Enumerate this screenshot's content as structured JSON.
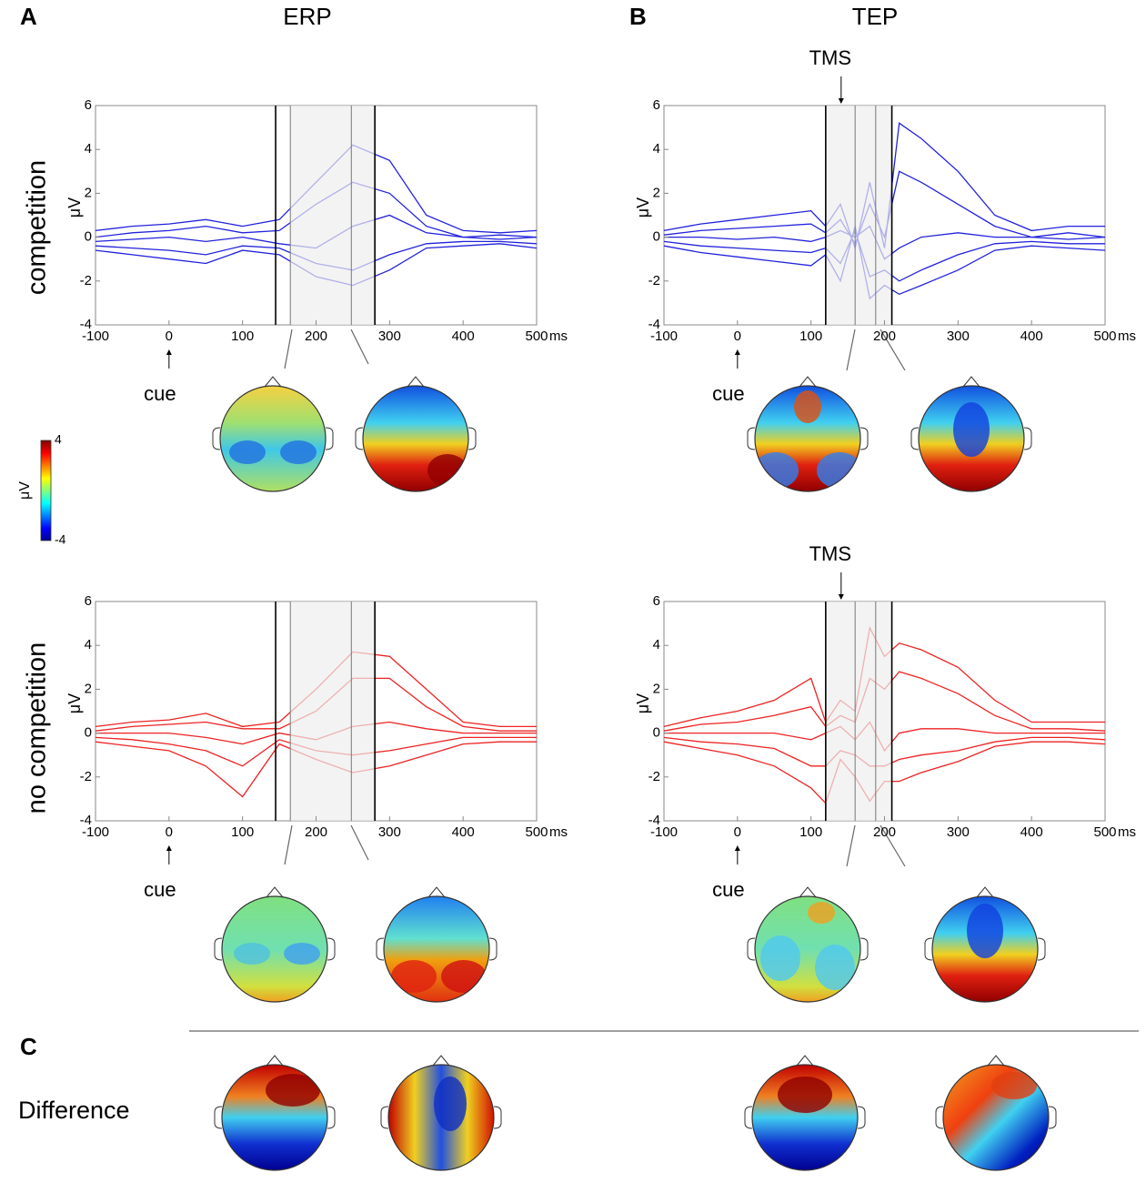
{
  "panels": {
    "a": "A",
    "b": "B",
    "c": "C"
  },
  "columns": [
    "ERP",
    "TEP"
  ],
  "rows": [
    "competition",
    "no competition"
  ],
  "difference": "Difference",
  "colorbar": {
    "label": "μV",
    "clim": [
      -4,
      4
    ],
    "ticks": [
      4,
      -4
    ]
  },
  "chart_data": [
    {
      "type": "line",
      "ylabel": "μV",
      "xunit": "ms",
      "xlim": [
        -100,
        500
      ],
      "ylim": [
        -4,
        6
      ],
      "xticks": [
        -100,
        0,
        100,
        200,
        300,
        400,
        500
      ],
      "yticks": [
        -4,
        -2,
        0,
        2,
        4,
        6
      ],
      "markers": [
        145,
        280
      ],
      "submarkers": [
        165,
        248
      ],
      "shade": [
        165,
        280
      ],
      "cue": {
        "text": "cue",
        "x": 0
      },
      "x": [
        -100,
        -50,
        0,
        50,
        100,
        150,
        200,
        250,
        300,
        350,
        400,
        450,
        500
      ],
      "series": [
        {
          "color": "#2222dd",
          "values": [
            0.3,
            0.5,
            0.6,
            0.8,
            0.5,
            0.8,
            2.5,
            4.2,
            3.5,
            1,
            0.3,
            0.2,
            0.3
          ]
        },
        {
          "color": "#2222dd",
          "values": [
            0,
            0.2,
            0.3,
            0.5,
            0.2,
            0.3,
            1.5,
            2.5,
            2.0,
            0.5,
            0,
            0.1,
            0
          ]
        },
        {
          "color": "#2222dd",
          "values": [
            -0.2,
            -0.1,
            0,
            -0.2,
            0,
            -0.3,
            -0.5,
            0.5,
            1,
            0.2,
            0,
            -0.1,
            0
          ]
        },
        {
          "color": "#2222dd",
          "values": [
            -0.4,
            -0.5,
            -0.6,
            -0.8,
            -0.4,
            -0.5,
            -1.2,
            -1.5,
            -0.8,
            -0.3,
            -0.2,
            -0.2,
            -0.3
          ]
        },
        {
          "color": "#2222dd",
          "values": [
            -0.6,
            -0.8,
            -1,
            -1.2,
            -0.6,
            -0.8,
            -1.8,
            -2.2,
            -1.5,
            -0.5,
            -0.4,
            -0.3,
            -0.5
          ]
        }
      ]
    },
    {
      "type": "line",
      "ylabel": "μV",
      "xunit": "ms",
      "xlim": [
        -100,
        500
      ],
      "ylim": [
        -4,
        6
      ],
      "xticks": [
        -100,
        0,
        100,
        200,
        300,
        400,
        500
      ],
      "yticks": [
        -4,
        -2,
        0,
        2,
        4,
        6
      ],
      "markers": [
        120,
        210
      ],
      "submarkers": [
        160,
        188
      ],
      "shade": [
        120,
        210
      ],
      "cue": {
        "text": "cue",
        "x": 0
      },
      "tms": {
        "text": "TMS",
        "x": 141
      },
      "x": [
        -100,
        -50,
        0,
        50,
        100,
        120,
        140,
        160,
        180,
        200,
        220,
        250,
        300,
        350,
        400,
        450,
        500
      ],
      "series": [
        {
          "color": "#2222dd",
          "values": [
            0.3,
            0.6,
            0.8,
            1,
            1.2,
            0.5,
            1.5,
            -0.5,
            2.5,
            -0.5,
            5.2,
            4.5,
            3,
            1,
            0.3,
            0.5,
            0.5
          ]
        },
        {
          "color": "#2222dd",
          "values": [
            0.1,
            0.3,
            0.4,
            0.5,
            0.6,
            0.2,
            0.8,
            -0.3,
            1.5,
            0,
            3,
            2.5,
            1.5,
            0.5,
            0,
            0.2,
            0
          ]
        },
        {
          "color": "#2222dd",
          "values": [
            0,
            0,
            -0.1,
            0,
            -0.2,
            0,
            0.3,
            0,
            0.5,
            -1,
            -0.5,
            0,
            0.2,
            0,
            0,
            -0.1,
            0
          ]
        },
        {
          "color": "#2222dd",
          "values": [
            -0.2,
            -0.4,
            -0.5,
            -0.6,
            -0.7,
            -0.5,
            -1.2,
            0.3,
            -1.8,
            -1.5,
            -2,
            -1.5,
            -0.8,
            -0.3,
            -0.2,
            -0.3,
            -0.3
          ]
        },
        {
          "color": "#2222dd",
          "values": [
            -0.4,
            -0.7,
            -0.9,
            -1.1,
            -1.3,
            -0.8,
            -2,
            0.5,
            -2.8,
            -2.2,
            -2.6,
            -2.2,
            -1.5,
            -0.6,
            -0.4,
            -0.5,
            -0.6
          ]
        }
      ]
    },
    {
      "type": "line",
      "ylabel": "μV",
      "xunit": "ms",
      "xlim": [
        -100,
        500
      ],
      "ylim": [
        -4,
        6
      ],
      "xticks": [
        -100,
        0,
        100,
        200,
        300,
        400,
        500
      ],
      "yticks": [
        -4,
        -2,
        0,
        2,
        4,
        6
      ],
      "markers": [
        145,
        280
      ],
      "submarkers": [
        165,
        248
      ],
      "shade": [
        165,
        280
      ],
      "cue": {
        "text": "cue",
        "x": 0
      },
      "x": [
        -100,
        -50,
        0,
        50,
        100,
        150,
        200,
        250,
        300,
        350,
        400,
        450,
        500
      ],
      "series": [
        {
          "color": "#ee2222",
          "values": [
            0.3,
            0.5,
            0.6,
            0.9,
            0.3,
            0.5,
            2,
            3.7,
            3.5,
            2,
            0.5,
            0.3,
            0.3
          ]
        },
        {
          "color": "#ee2222",
          "values": [
            0.1,
            0.3,
            0.4,
            0.5,
            0.2,
            0.2,
            1,
            2.5,
            2.5,
            1.2,
            0.3,
            0.1,
            0.1
          ]
        },
        {
          "color": "#ee2222",
          "values": [
            0,
            0,
            0,
            -0.2,
            -0.5,
            0,
            -0.3,
            0.3,
            0.5,
            0.2,
            0,
            0,
            0
          ]
        },
        {
          "color": "#ee2222",
          "values": [
            -0.2,
            -0.3,
            -0.5,
            -0.8,
            -1.5,
            -0.3,
            -0.8,
            -1,
            -0.8,
            -0.5,
            -0.2,
            -0.2,
            -0.2
          ]
        },
        {
          "color": "#ee2222",
          "values": [
            -0.4,
            -0.6,
            -0.8,
            -1.5,
            -2.9,
            -0.5,
            -1.2,
            -1.8,
            -1.5,
            -1,
            -0.5,
            -0.4,
            -0.4
          ]
        }
      ]
    },
    {
      "type": "line",
      "ylabel": "μV",
      "xunit": "ms",
      "xlim": [
        -100,
        500
      ],
      "ylim": [
        -4,
        6
      ],
      "xticks": [
        -100,
        0,
        100,
        200,
        300,
        400,
        500
      ],
      "yticks": [
        -4,
        -2,
        0,
        2,
        4,
        6
      ],
      "markers": [
        120,
        210
      ],
      "submarkers": [
        160,
        188
      ],
      "shade": [
        120,
        210
      ],
      "cue": {
        "text": "cue",
        "x": 0
      },
      "tms": {
        "text": "TMS",
        "x": 141
      },
      "x": [
        -100,
        -50,
        0,
        50,
        100,
        120,
        140,
        160,
        180,
        200,
        220,
        250,
        300,
        350,
        400,
        450,
        500
      ],
      "series": [
        {
          "color": "#ee2222",
          "values": [
            0.3,
            0.7,
            1,
            1.5,
            2.5,
            0.5,
            1.5,
            1,
            4.8,
            3.5,
            4.1,
            3.8,
            3,
            1.5,
            0.5,
            0.5,
            0.5
          ]
        },
        {
          "color": "#ee2222",
          "values": [
            0.1,
            0.4,
            0.5,
            0.8,
            1.2,
            0.3,
            0.8,
            0.5,
            2.5,
            2,
            2.8,
            2.5,
            1.8,
            0.8,
            0.2,
            0.2,
            0.1
          ]
        },
        {
          "color": "#ee2222",
          "values": [
            0,
            0,
            0,
            0,
            -0.3,
            0,
            0.3,
            -0.3,
            0.5,
            -0.8,
            0,
            0.2,
            0.2,
            0,
            0,
            0,
            0
          ]
        },
        {
          "color": "#ee2222",
          "values": [
            -0.2,
            -0.4,
            -0.5,
            -0.7,
            -1.5,
            -1.5,
            -0.8,
            -1,
            -1.5,
            -1.5,
            -1.2,
            -1,
            -0.8,
            -0.4,
            -0.2,
            -0.2,
            -0.3
          ]
        },
        {
          "color": "#ee2222",
          "values": [
            -0.4,
            -0.7,
            -1,
            -1.5,
            -2.5,
            -3.2,
            -1.2,
            -2,
            -3.1,
            -2.2,
            -2.2,
            -1.8,
            -1.3,
            -0.6,
            -0.4,
            -0.4,
            -0.5
          ]
        }
      ]
    }
  ]
}
